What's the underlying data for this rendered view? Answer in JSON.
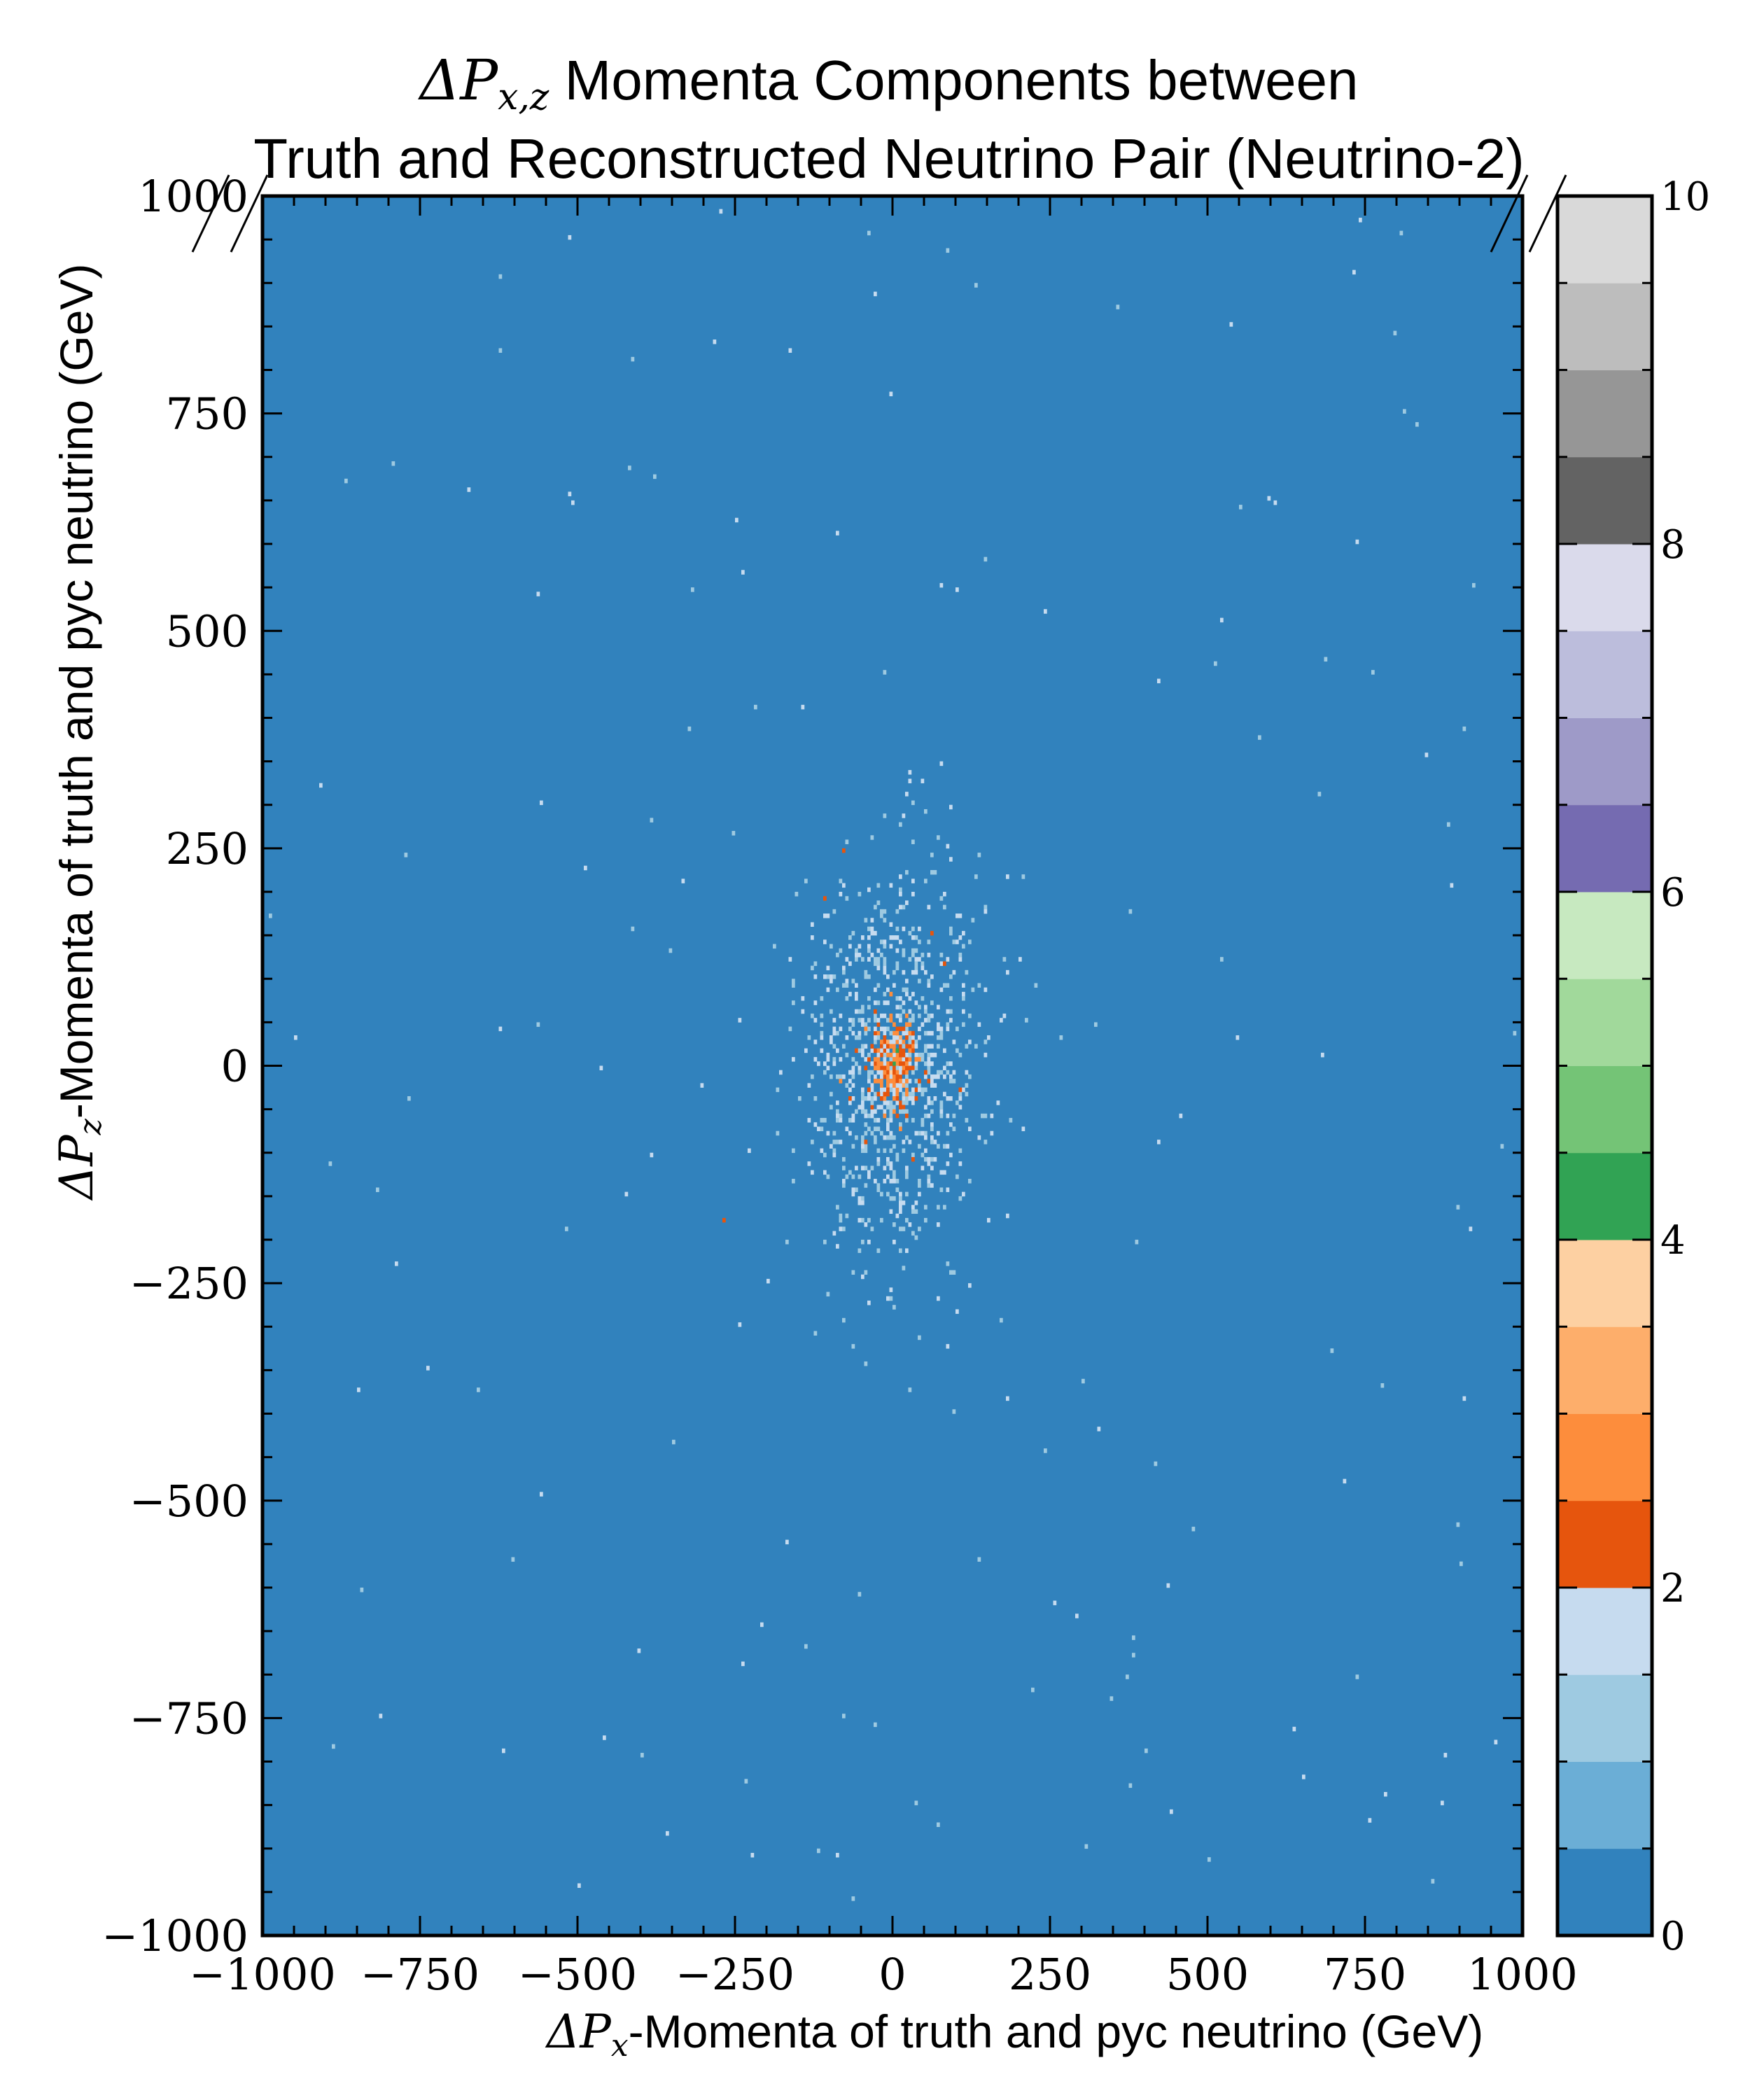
{
  "chart_data": {
    "type": "heatmap",
    "title": {
      "line1_symbol": "ΔP",
      "line1_subscript": "x,z",
      "line1_text": " Momenta Components between",
      "line2": "Truth and Reconstructed Neutrino Pair (Neutrino-2)"
    },
    "xlabel": {
      "symbol": "ΔP",
      "subscript": "x",
      "text": "-Momenta of truth and pyc neutrino (GeV)"
    },
    "ylabel": {
      "symbol": "ΔP",
      "subscript": "z",
      "text": "-Momenta of truth and pyc neutrino (GeV)"
    },
    "xlim": [
      -1000,
      1000
    ],
    "ylim": [
      -1000,
      1000
    ],
    "x_ticks": [
      {
        "value": -1000,
        "label": "−1000"
      },
      {
        "value": -750,
        "label": "−750"
      },
      {
        "value": -500,
        "label": "−500"
      },
      {
        "value": -250,
        "label": "−250"
      },
      {
        "value": 0,
        "label": "0"
      },
      {
        "value": 250,
        "label": "250"
      },
      {
        "value": 500,
        "label": "500"
      },
      {
        "value": 750,
        "label": "750"
      },
      {
        "value": 1000,
        "label": "1000"
      }
    ],
    "y_ticks": [
      {
        "value": -1000,
        "label": "−1000"
      },
      {
        "value": -750,
        "label": "−750"
      },
      {
        "value": -500,
        "label": "−500"
      },
      {
        "value": -250,
        "label": "−250"
      },
      {
        "value": 0,
        "label": "0"
      },
      {
        "value": 250,
        "label": "250"
      },
      {
        "value": 500,
        "label": "500"
      },
      {
        "value": 750,
        "label": "750"
      },
      {
        "value": 1000,
        "label": "1000"
      }
    ],
    "colorbar": {
      "range": [
        0,
        10
      ],
      "ticks": [
        {
          "value": 0,
          "label": "0"
        },
        {
          "value": 2,
          "label": "2"
        },
        {
          "value": 4,
          "label": "4"
        },
        {
          "value": 6,
          "label": "6"
        },
        {
          "value": 8,
          "label": "8"
        },
        {
          "value": 10,
          "label": "10"
        }
      ],
      "colors": [
        "#3182bd",
        "#6baed6",
        "#9ecae1",
        "#c6dbef",
        "#e6550d",
        "#fd8d3c",
        "#fdae6b",
        "#fdd0a2",
        "#31a354",
        "#74c476",
        "#a1d99b",
        "#c7e9c0",
        "#756bb1",
        "#9e9ac8",
        "#bcbddc",
        "#dadaeb",
        "#636363",
        "#969696",
        "#bdbdbd",
        "#d9d9d9"
      ]
    },
    "background_count": 0,
    "distribution": {
      "center": [
        0,
        0
      ],
      "core_sigma": [
        20,
        25
      ],
      "halo_sigma": [
        70,
        115
      ],
      "outlier_range": [
        -1000,
        1000
      ]
    },
    "cells": [
      {
        "x": 0,
        "y": 0,
        "count": 4.3
      },
      {
        "x": 5,
        "y": 15,
        "count": 4.1
      },
      {
        "x": -5,
        "y": -10,
        "count": 3.8
      },
      {
        "x": 10,
        "y": 30,
        "count": 3.4
      },
      {
        "x": -10,
        "y": 25,
        "count": 3.2
      },
      {
        "x": 15,
        "y": -25,
        "count": 3.0
      },
      {
        "x": 0,
        "y": 45,
        "count": 2.9
      },
      {
        "x": -15,
        "y": -40,
        "count": 2.7
      },
      {
        "x": 20,
        "y": 55,
        "count": 2.5
      },
      {
        "x": 25,
        "y": 5,
        "count": 2.6
      },
      {
        "x": -20,
        "y": 10,
        "count": 2.4
      },
      {
        "x": 5,
        "y": -60,
        "count": 2.3
      },
      {
        "x": 35,
        "y": -40,
        "count": 2.2
      },
      {
        "x": -30,
        "y": 60,
        "count": 2.2
      },
      {
        "x": 80,
        "y": 115,
        "count": 2.3
      },
      {
        "x": 105,
        "y": -30,
        "count": 2.2
      },
      {
        "x": -45,
        "y": -90,
        "count": 2.1
      },
      {
        "x": -270,
        "y": -180,
        "count": 2.2
      },
      {
        "x": -80,
        "y": 245,
        "count": 2.1
      },
      {
        "x": -110,
        "y": 190,
        "count": 2.0
      },
      {
        "x": 60,
        "y": 150,
        "count": 2.1
      },
      {
        "x": 30,
        "y": -110,
        "count": 2.0
      },
      {
        "x": -60,
        "y": 15,
        "count": 2.1
      }
    ]
  }
}
